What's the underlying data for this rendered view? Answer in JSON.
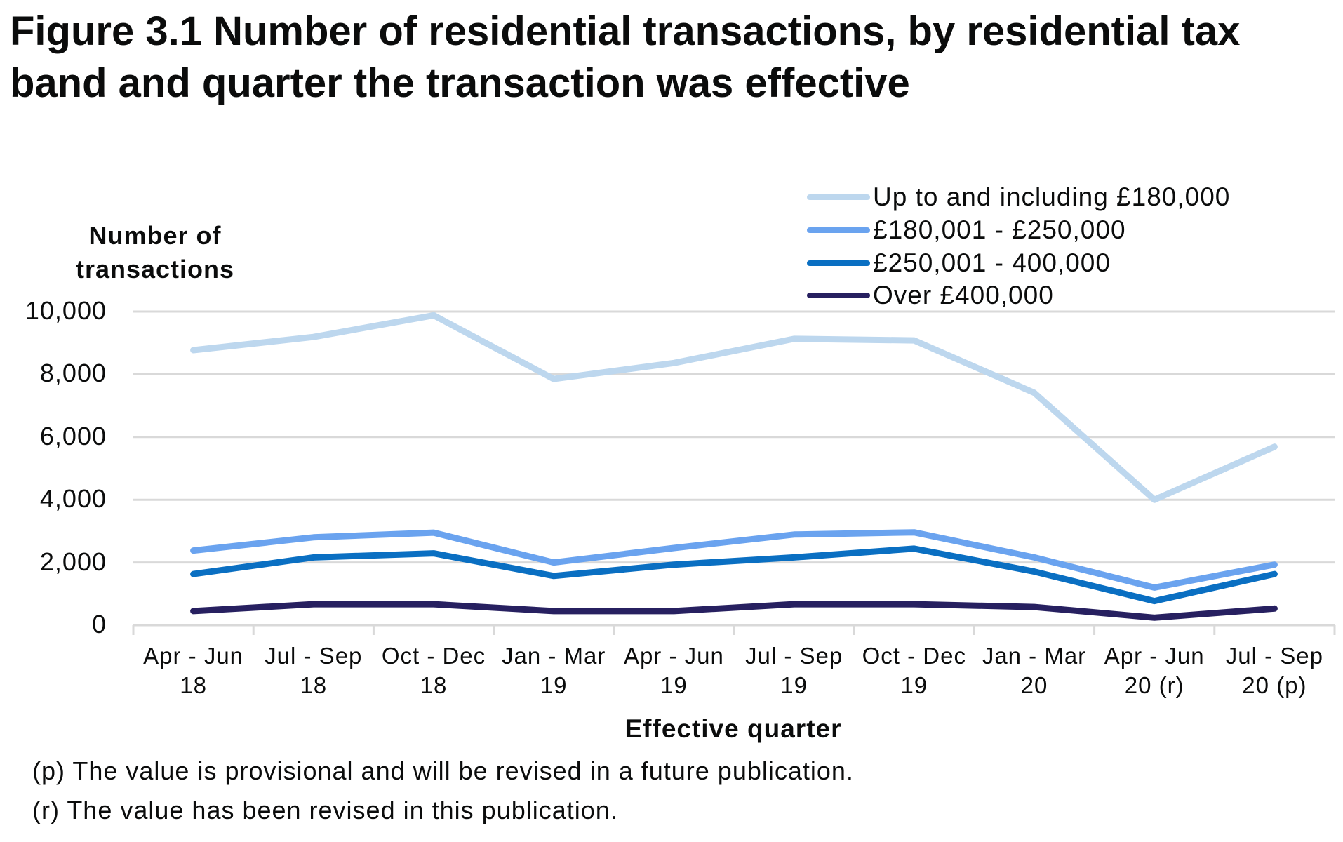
{
  "title": "Figure 3.1  Number of residential transactions, by residential tax band and quarter the transaction was effective",
  "footnotes": [
    "(p) The  value  is  provisional  and will be  revised  in  a  future  publication.",
    "(r) The  value  has been  revised  in this publication."
  ],
  "chart_data": {
    "type": "line",
    "title": "Figure 3.1  Number of residential transactions, by residential tax band and quarter the transaction was effective",
    "xlabel": "Effective quarter",
    "ylabel": "Number of transactions",
    "ylabel_lines": [
      "Number of",
      "transactions"
    ],
    "ylim": [
      0,
      10000
    ],
    "yticks": [
      0,
      2000,
      4000,
      6000,
      8000,
      10000
    ],
    "ytick_labels": [
      "0",
      "2,000",
      "4,000",
      "6,000",
      "8,000",
      "10,000"
    ],
    "grid": true,
    "legend_position": "top-right",
    "categories": [
      [
        "Apr - Jun",
        "18"
      ],
      [
        "Jul - Sep",
        "18"
      ],
      [
        "Oct - Dec",
        "18"
      ],
      [
        "Jan - Mar",
        "19"
      ],
      [
        "Apr - Jun",
        "19"
      ],
      [
        "Jul - Sep",
        "19"
      ],
      [
        "Oct - Dec",
        "19"
      ],
      [
        "Jan - Mar",
        "20"
      ],
      [
        "Apr - Jun",
        "20 (r)"
      ],
      [
        "Jul - Sep",
        "20 (p)"
      ]
    ],
    "series": [
      {
        "name": "Up to and including £180,000",
        "color": "#bdd7ee",
        "values": [
          8770,
          9190,
          9880,
          7850,
          8360,
          9130,
          9080,
          7410,
          4000,
          5690
        ]
      },
      {
        "name": "£180,001 - £250,000",
        "color": "#6aa3ef",
        "values": [
          2380,
          2800,
          2950,
          2000,
          2460,
          2890,
          2960,
          2160,
          1200,
          1930
        ]
      },
      {
        "name": "£250,001 - 400,000",
        "color": "#0a6fc2",
        "values": [
          1630,
          2160,
          2290,
          1570,
          1930,
          2160,
          2440,
          1710,
          770,
          1630
        ]
      },
      {
        "name": "Over £400,000",
        "color": "#272060",
        "values": [
          450,
          670,
          670,
          450,
          450,
          670,
          670,
          580,
          240,
          530
        ]
      }
    ]
  }
}
